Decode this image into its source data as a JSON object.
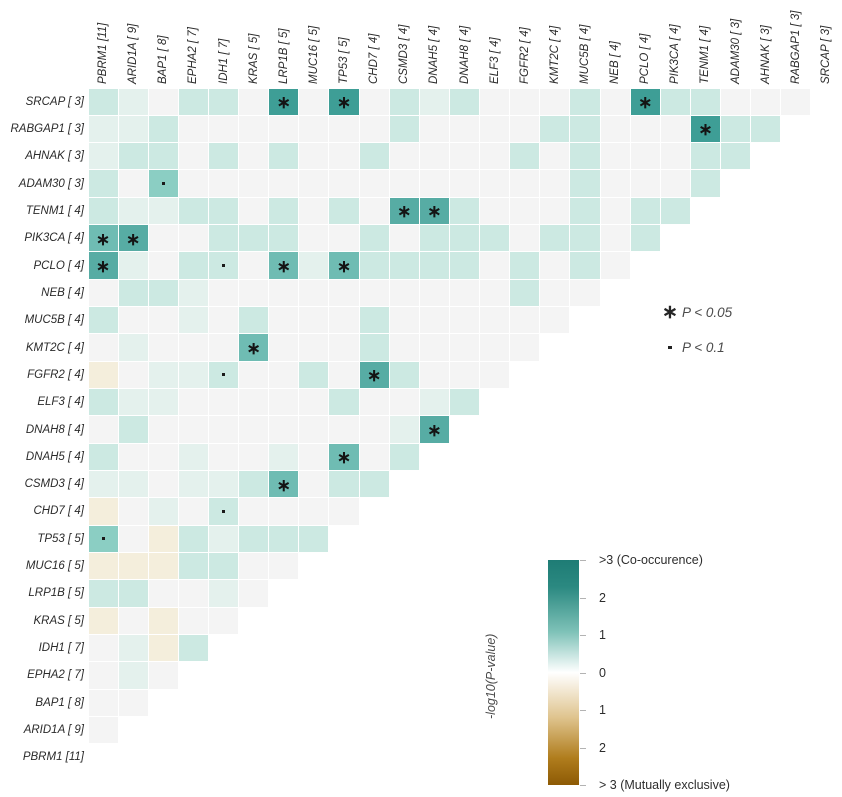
{
  "chart_data": {
    "type": "heatmap",
    "description": "Somatic gene mutation interaction triangle heatmap (co-occurrence vs mutual exclusivity)",
    "columns": [
      "PBRM1 [11]",
      "ARID1A [ 9]",
      "BAP1 [ 8]",
      "EPHA2 [ 7]",
      "IDH1 [ 7]",
      "KRAS [ 5]",
      "LRP1B [ 5]",
      "MUC16 [ 5]",
      "TP53 [ 5]",
      "CHD7 [ 4]",
      "CSMD3 [ 4]",
      "DNAH5 [ 4]",
      "DNAH8 [ 4]",
      "ELF3 [ 4]",
      "FGFR2 [ 4]",
      "KMT2C [ 4]",
      "MUC5B [ 4]",
      "NEB [ 4]",
      "PCLO [ 4]",
      "PIK3CA [ 4]",
      "TENM1 [ 4]",
      "ADAM30 [ 3]",
      "AHNAK [ 3]",
      "RABGAP1 [ 3]",
      "SRCAP [ 3]"
    ],
    "rows": [
      "SRCAP [ 3]",
      "RABGAP1 [ 3]",
      "AHNAK [ 3]",
      "ADAM30 [ 3]",
      "TENM1 [ 4]",
      "PIK3CA [ 4]",
      "PCLO [ 4]",
      "NEB [ 4]",
      "MUC5B [ 4]",
      "KMT2C [ 4]",
      "FGFR2 [ 4]",
      "ELF3 [ 4]",
      "DNAH8 [ 4]",
      "DNAH5 [ 4]",
      "CSMD3 [ 4]",
      "CHD7 [ 4]",
      "TP53 [ 5]",
      "MUC16 [ 5]",
      "LRP1B [ 5]",
      "KRAS [ 5]",
      "IDH1 [ 7]",
      "EPHA2 [ 7]",
      "BAP1 [ 8]",
      "ARID1A [ 9]",
      "PBRM1 [11]"
    ],
    "cell_value_legend": "codes: 0 none, 1-5 increasing co-occurrence strength, -1 mutual exclusivity tint, 3L light-medium teal; * = P<0.05, . = P<0.1",
    "cells": [
      [
        "2",
        "1",
        "0",
        "2",
        "2",
        "0",
        "5*",
        "0",
        "5*",
        "0",
        "2",
        "1",
        "2",
        "0",
        "0",
        "0",
        "2",
        "0",
        "5*",
        "2",
        "2",
        "0",
        "0",
        "0"
      ],
      [
        "1",
        "1",
        "2",
        "0",
        "0",
        "0",
        "0",
        "0",
        "0",
        "0",
        "2",
        "0",
        "0",
        "0",
        "0",
        "2",
        "2",
        "0",
        "0",
        "0",
        "5*",
        "2",
        "2"
      ],
      [
        "1",
        "2",
        "2",
        "0",
        "2",
        "0",
        "2",
        "0",
        "0",
        "2",
        "0",
        "0",
        "0",
        "0",
        "2",
        "0",
        "2",
        "0",
        "0",
        "0",
        "2",
        "2"
      ],
      [
        "2",
        "0",
        "3L.",
        "0",
        "0",
        "0",
        "0",
        "0",
        "0",
        "0",
        "0",
        "0",
        "0",
        "0",
        "0",
        "0",
        "2",
        "0",
        "0",
        "0",
        "2"
      ],
      [
        "2",
        "1",
        "1",
        "2",
        "2",
        "0",
        "2",
        "0",
        "2",
        "0",
        "4*",
        "4*",
        "2",
        "0",
        "0",
        "0",
        "2",
        "0",
        "2",
        "2"
      ],
      [
        "3*",
        "4*",
        "0",
        "0",
        "2",
        "2",
        "2",
        "0",
        "0",
        "2",
        "0",
        "2",
        "2",
        "2",
        "0",
        "2",
        "2",
        "0",
        "2"
      ],
      [
        "4*",
        "1",
        "0",
        "2",
        "2.",
        "0",
        "3*",
        "1",
        "3*",
        "2",
        "2",
        "2",
        "2",
        "0",
        "2",
        "0",
        "2",
        "0"
      ],
      [
        "0",
        "2",
        "2",
        "1",
        "0",
        "0",
        "0",
        "0",
        "0",
        "0",
        "0",
        "0",
        "0",
        "0",
        "2",
        "0",
        "0"
      ],
      [
        "2",
        "0",
        "0",
        "1",
        "0",
        "2",
        "0",
        "0",
        "0",
        "2",
        "0",
        "0",
        "0",
        "0",
        "0",
        "0"
      ],
      [
        "0",
        "1",
        "0",
        "0",
        "0",
        "3*",
        "0",
        "0",
        "0",
        "2",
        "0",
        "0",
        "0",
        "0",
        "0"
      ],
      [
        "-1",
        "0",
        "1",
        "1",
        "2.",
        "0",
        "0",
        "2",
        "0",
        "4*",
        "2",
        "0",
        "0",
        "0"
      ],
      [
        "2",
        "1",
        "1",
        "0",
        "0",
        "0",
        "0",
        "0",
        "2",
        "0",
        "0",
        "1",
        "2"
      ],
      [
        "0",
        "2",
        "0",
        "0",
        "0",
        "0",
        "0",
        "0",
        "0",
        "0",
        "1",
        "4*"
      ],
      [
        "2",
        "0",
        "0",
        "1",
        "0",
        "0",
        "1",
        "0",
        "3*",
        "0",
        "2"
      ],
      [
        "1",
        "1",
        "0",
        "1",
        "1",
        "2",
        "3*",
        "0",
        "2",
        "2"
      ],
      [
        "-1",
        "0",
        "1",
        "0",
        "2.",
        "0",
        "0",
        "0",
        "0"
      ],
      [
        "3L.",
        "0",
        "-1",
        "2",
        "1",
        "2",
        "2",
        "2"
      ],
      [
        "-1",
        "-1",
        "-1",
        "2",
        "2",
        "0",
        "0"
      ],
      [
        "2",
        "2",
        "0",
        "0",
        "1",
        "0"
      ],
      [
        "-1",
        "0",
        "-1",
        "0",
        "0"
      ],
      [
        "0",
        "1",
        "-1",
        "2"
      ],
      [
        "0",
        "1",
        "0"
      ],
      [
        "0",
        "0"
      ],
      [
        "0"
      ],
      []
    ],
    "palette": {
      "0": "#f4f4f4",
      "1": "#e4f1ed",
      "2": "#cce9e2",
      "3": "#6fbcb3",
      "3L": "#8bcec3",
      "4": "#57aca4",
      "5": "#3e9e96",
      "-1": "#f4eedc"
    },
    "legend": {
      "p005_symbol": "∗",
      "p005_label": "P < 0.05",
      "p01_label": "P < 0.1"
    },
    "colorbar": {
      "axis_label": "-log10(P-value)",
      "tick_labels": [
        ">3 (Co-occurence)",
        "2",
        "1",
        "0",
        "1",
        "2",
        "> 3 (Mutually exclusive)"
      ],
      "top_color": "#1e7c75",
      "bottom_color": "#8d5a05"
    }
  }
}
